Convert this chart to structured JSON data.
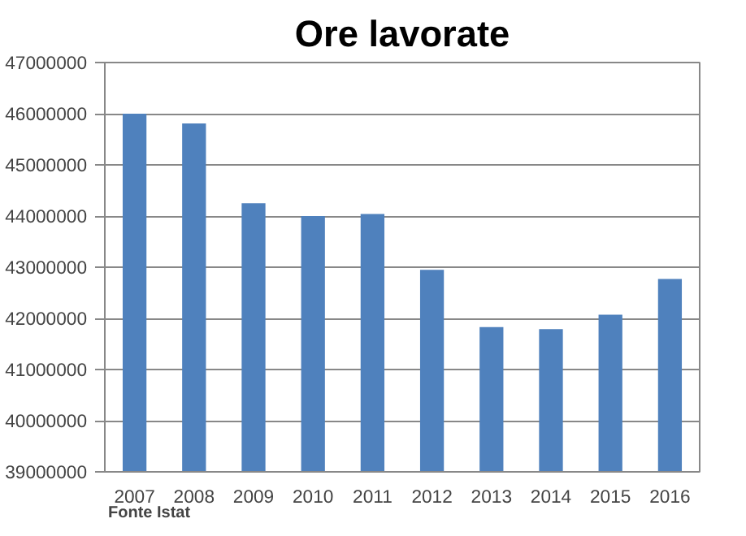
{
  "chart_data": {
    "type": "bar",
    "title": "Ore lavorate",
    "categories": [
      "2007",
      "2008",
      "2009",
      "2010",
      "2011",
      "2012",
      "2013",
      "2014",
      "2015",
      "2016"
    ],
    "values": [
      46000000,
      45810000,
      44250000,
      44000000,
      44040000,
      42950000,
      41830000,
      41790000,
      42070000,
      42770000
    ],
    "color": "#4f81bd",
    "ylim": [
      39000000,
      47000000
    ],
    "yticks": [
      39000000,
      40000000,
      41000000,
      42000000,
      43000000,
      44000000,
      45000000,
      46000000,
      47000000
    ],
    "grid": "y",
    "annotations": [
      "Fonte Istat"
    ]
  }
}
